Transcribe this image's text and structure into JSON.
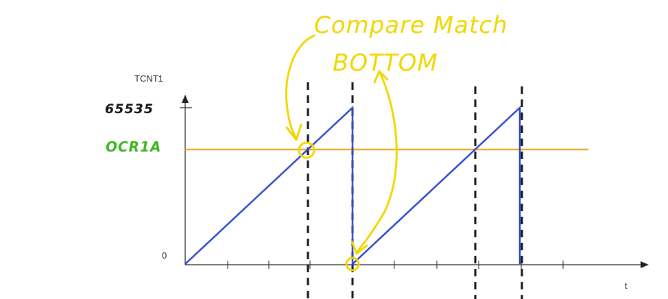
{
  "axes": {
    "y_label": "TCNT1",
    "x_label": "t",
    "y_zero_label": "0"
  },
  "annotations": {
    "top_value": "65535",
    "threshold_label": "OCR1A",
    "compare_match": "Compare Match",
    "bottom": "BOTTOM"
  },
  "colors": {
    "counter_line": "#2b46c8",
    "threshold_line": "#e8a92a",
    "annotation_yellow": "#f2d600",
    "threshold_label_green": "#3cb61e",
    "axis": "#222222"
  },
  "chart_data": {
    "type": "line",
    "series": [
      {
        "x": [
          0,
          1,
          1,
          2,
          2
        ],
        "y": [
          0,
          65535,
          0,
          65535,
          0
        ]
      }
    ],
    "threshold": {
      "label": "OCR1A",
      "y": 48000
    },
    "event_markers": [
      "compare-match",
      "bottom",
      "compare-match",
      "bottom"
    ],
    "ylim": [
      0,
      65535
    ]
  }
}
